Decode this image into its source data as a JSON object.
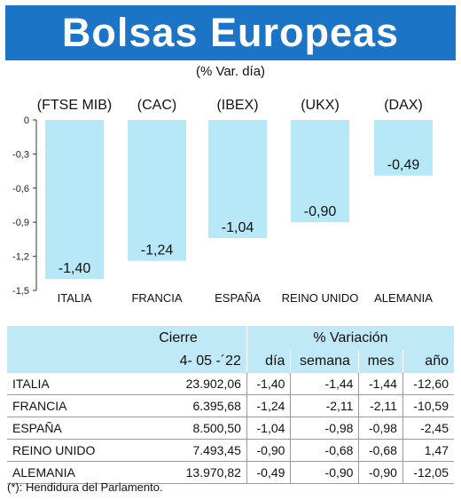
{
  "header": {
    "title": "Bolsas Europeas"
  },
  "chart_data": {
    "type": "bar",
    "title": "Bolsas Europeas",
    "subtitle": "(% Var. día)",
    "categories": [
      "ITALIA",
      "FRANCIA",
      "ESPAÑA",
      "REINO UNIDO",
      "ALEMANIA"
    ],
    "indices": [
      "(FTSE MIB)",
      "(CAC)",
      "(IBEX)",
      "(UKX)",
      "(DAX)"
    ],
    "values": [
      -1.4,
      -1.24,
      -1.04,
      -0.9,
      -0.49
    ],
    "value_labels": [
      "-1,40",
      "-1,24",
      "-1,04",
      "-0,90",
      "-0,49"
    ],
    "yticks": [
      "0",
      "-0,3",
      "-0,6",
      "-0,9",
      "-1,2",
      "-1,5"
    ],
    "ylim": [
      -1.5,
      0
    ],
    "bar_color": "#b6e8f8"
  },
  "table": {
    "group_headers": {
      "cierre": "Cierre",
      "variacion": "% Variación"
    },
    "sub_headers": {
      "date": "4- 05 -´22",
      "dia": "día",
      "semana": "semana",
      "mes": "mes",
      "anio": "año"
    },
    "rows": [
      {
        "name": "ITALIA",
        "cierre": "23.902,06",
        "dia": "-1,40",
        "semana": "-1,44",
        "mes": "-1,44",
        "anio": "-12,60"
      },
      {
        "name": "FRANCIA",
        "cierre": "6.395,68",
        "dia": "-1,24",
        "semana": "-2,11",
        "mes": "-2,11",
        "anio": "-10,59"
      },
      {
        "name": "ESPAÑA",
        "cierre": "8.500,50",
        "dia": "-1,04",
        "semana": "-0,98",
        "mes": "-0,98",
        "anio": "-2,45"
      },
      {
        "name": "REINO UNIDO",
        "cierre": "7.493,45",
        "dia": "-0,90",
        "semana": "-0,68",
        "mes": "-0,68",
        "anio": "1,47"
      },
      {
        "name": "ALEMANIA",
        "cierre": "13.970,82",
        "dia": "-0,49",
        "semana": "-0,90",
        "mes": "-0,90",
        "anio": "-12,05"
      }
    ]
  },
  "footnote": "(*): Hendidura del Parlamento."
}
